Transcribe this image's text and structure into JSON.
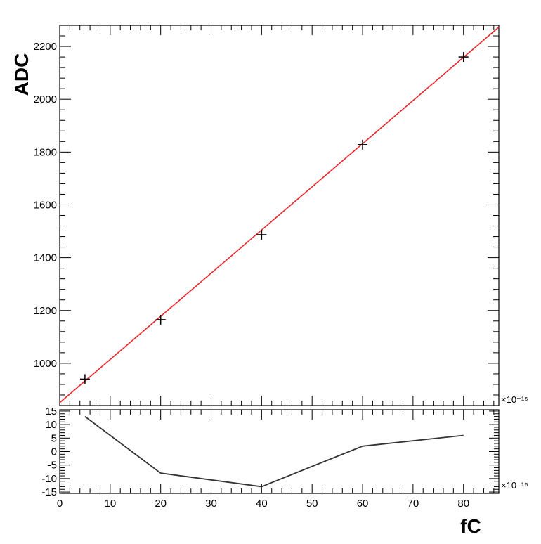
{
  "chart_data": [
    {
      "type": "scatter",
      "title": "",
      "xlabel": "",
      "ylabel": "ADC",
      "x_exponent": "×10⁻¹⁵",
      "xlim": [
        0,
        87
      ],
      "ylim": [
        840,
        2280
      ],
      "yticks": [
        1000,
        1200,
        1400,
        1600,
        1800,
        2000,
        2200
      ],
      "grid": false,
      "series": [
        {
          "marker": "cross",
          "color": "#000000",
          "x": [
            5,
            20,
            40,
            60,
            80
          ],
          "y": [
            940,
            1165,
            1487,
            1828,
            2160
          ]
        }
      ],
      "fit_line": {
        "color": "#e8262b",
        "x": [
          0,
          87
        ],
        "y": [
          851,
          2273
        ]
      }
    },
    {
      "type": "line",
      "title": "",
      "xlabel": "fC",
      "ylabel": "",
      "x_exponent": "×10⁻¹⁵",
      "xlim": [
        0,
        87
      ],
      "ylim": [
        -15.5,
        15.5
      ],
      "yticks": [
        -15,
        -10,
        -5,
        0,
        5,
        10,
        15
      ],
      "xticks": [
        0,
        10,
        20,
        30,
        40,
        50,
        60,
        70,
        80
      ],
      "grid": false,
      "series": [
        {
          "color": "#333333",
          "x": [
            5,
            20,
            40,
            60,
            80
          ],
          "y": [
            13,
            -8,
            -13,
            2,
            6
          ]
        }
      ]
    }
  ]
}
